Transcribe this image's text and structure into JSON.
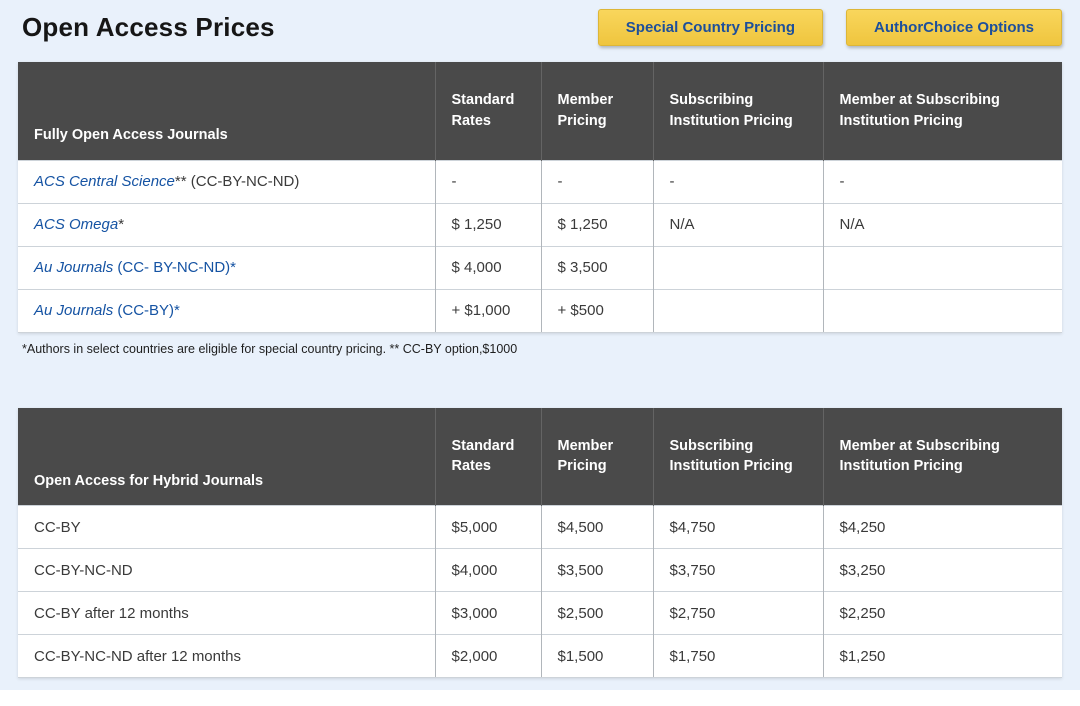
{
  "page": {
    "title": "Open Access Prices"
  },
  "actions": {
    "special_country": "Special Country Pricing",
    "authorchoice": "AuthorChoice Options"
  },
  "colors": {
    "background": "#e9f1fb",
    "table_header_bg": "#4a4a4a",
    "button_bg": "#f5ce4a",
    "button_text": "#1d4f9b",
    "link": "#1553a3"
  },
  "table1": {
    "headers": [
      "Fully Open Access Journals",
      "Standard Rates",
      "Member Pricing",
      "Subscribing Institution Pricing",
      "Member at Subscribing Institution Pricing"
    ],
    "rows": [
      {
        "journal": "ACS Central Science",
        "suffix": "** (CC-BY-NC-ND)",
        "standard": "-",
        "member": "-",
        "subscribing": "-",
        "member_subscribing": "-"
      },
      {
        "journal": "ACS Omega",
        "suffix": "*",
        "standard": "$ 1,250",
        "member": "$ 1,250",
        "subscribing": "N/A",
        "member_subscribing": "N/A"
      },
      {
        "journal": "Au Journals",
        "suffix": " (CC- BY-NC-ND)*",
        "standard": "$ 4,000",
        "member": "$ 3,500",
        "subscribing": "",
        "member_subscribing": ""
      },
      {
        "journal": "Au Journals",
        "suffix": " (CC-BY)*",
        "standard": "+ $1,000",
        "member": "+ $500",
        "subscribing": "",
        "member_subscribing": ""
      }
    ],
    "footnote": "*Authors in select countries are eligible for special country pricing. ** CC-BY option,$1000"
  },
  "table2": {
    "headers": [
      "Open Access for Hybrid Journals",
      "Standard Rates",
      "Member Pricing",
      "Subscribing Institution Pricing",
      "Member at Subscribing Institution Pricing"
    ],
    "rows": [
      {
        "label": "CC-BY",
        "standard": "$5,000",
        "member": "$4,500",
        "subscribing": "$4,750",
        "member_subscribing": "$4,250"
      },
      {
        "label": "CC-BY-NC-ND",
        "standard": "$4,000",
        "member": "$3,500",
        "subscribing": "$3,750",
        "member_subscribing": "$3,250"
      },
      {
        "label": "CC-BY after 12 months",
        "standard": "$3,000",
        "member": "$2,500",
        "subscribing": "$2,750",
        "member_subscribing": "$2,250"
      },
      {
        "label": "CC-BY-NC-ND after 12 months",
        "standard": "$2,000",
        "member": "$1,500",
        "subscribing": "$1,750",
        "member_subscribing": "$1,250"
      }
    ]
  }
}
